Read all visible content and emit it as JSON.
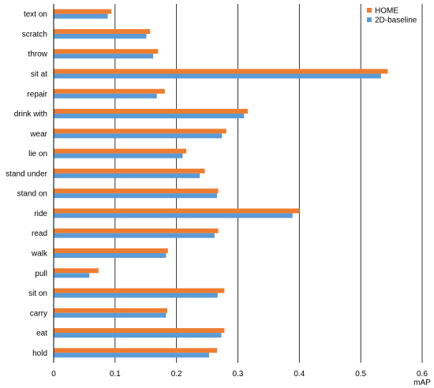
{
  "chart_data": {
    "type": "bar",
    "orientation": "horizontal",
    "categories": [
      "text on",
      "scratch",
      "throw",
      "sit at",
      "repair",
      "drink with",
      "wear",
      "lie on",
      "stand under",
      "stand on",
      "ride",
      "read",
      "walk",
      "pull",
      "sit on",
      "carry",
      "eat",
      "hold"
    ],
    "series": [
      {
        "name": "HOME",
        "color": "#ed7d31",
        "values": [
          0.094,
          0.157,
          0.17,
          0.544,
          0.181,
          0.316,
          0.281,
          0.216,
          0.246,
          0.268,
          0.4,
          0.268,
          0.186,
          0.073,
          0.278,
          0.185,
          0.278,
          0.266
        ]
      },
      {
        "name": "2D-baseline",
        "color": "#5b9bd5",
        "values": [
          0.088,
          0.151,
          0.162,
          0.533,
          0.168,
          0.31,
          0.274,
          0.21,
          0.238,
          0.266,
          0.389,
          0.262,
          0.183,
          0.058,
          0.267,
          0.183,
          0.273,
          0.253
        ]
      }
    ],
    "xlabel": "mAP",
    "ylabel": "",
    "xlim": [
      0,
      0.6
    ],
    "xticks": [
      "0",
      "0.1",
      "0.2",
      "0.3",
      "0.4",
      "0.5",
      "0.6"
    ],
    "grid": true,
    "legend_position": "top-right"
  }
}
